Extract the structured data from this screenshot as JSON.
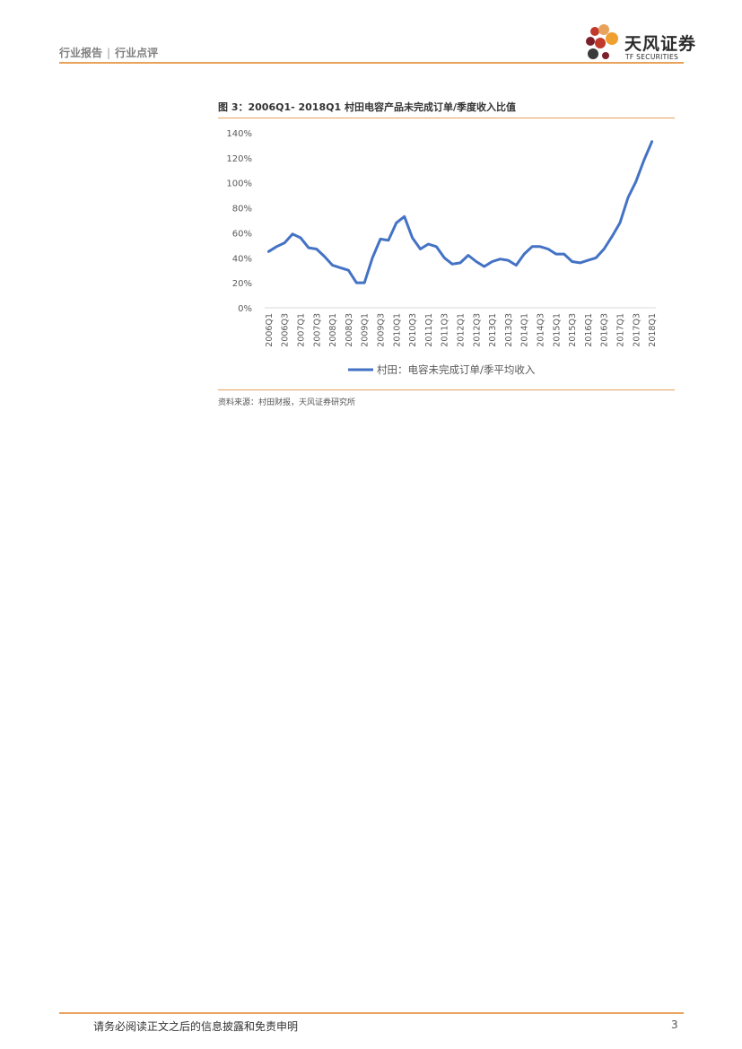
{
  "header": {
    "category": "行业报告",
    "separator": "|",
    "subcategory": "行业点评",
    "logo_name": "天风证券",
    "logo_sub": "TF SECURITIES",
    "accent_color": "#e8a25c"
  },
  "figure": {
    "title": "图 3：2006Q1- 2018Q1 村田电容产品未完成订单/季度收入比值",
    "source": "资料来源：村田财报，天风证券研究所"
  },
  "chart_data": {
    "type": "line",
    "title": "",
    "xlabel": "",
    "ylabel": "",
    "ylim": [
      0,
      140
    ],
    "y_ticks": [
      "0%",
      "20%",
      "40%",
      "60%",
      "80%",
      "100%",
      "120%",
      "140%"
    ],
    "x_tick_labels": [
      "2006Q1",
      "2006Q3",
      "2007Q1",
      "2007Q3",
      "2008Q1",
      "2008Q3",
      "2009Q1",
      "2009Q3",
      "2010Q1",
      "2010Q3",
      "2011Q1",
      "2011Q3",
      "2012Q1",
      "2012Q3",
      "2013Q1",
      "2013Q3",
      "2014Q1",
      "2014Q3",
      "2015Q1",
      "2015Q3",
      "2016Q1",
      "2016Q3",
      "2017Q1",
      "2017Q3",
      "2018Q1"
    ],
    "x": [
      "2006Q1",
      "2006Q2",
      "2006Q3",
      "2006Q4",
      "2007Q1",
      "2007Q2",
      "2007Q3",
      "2007Q4",
      "2008Q1",
      "2008Q2",
      "2008Q3",
      "2008Q4",
      "2009Q1",
      "2009Q2",
      "2009Q3",
      "2009Q4",
      "2010Q1",
      "2010Q2",
      "2010Q3",
      "2010Q4",
      "2011Q1",
      "2011Q2",
      "2011Q3",
      "2011Q4",
      "2012Q1",
      "2012Q2",
      "2012Q3",
      "2012Q4",
      "2013Q1",
      "2013Q2",
      "2013Q3",
      "2013Q4",
      "2014Q1",
      "2014Q2",
      "2014Q3",
      "2014Q4",
      "2015Q1",
      "2015Q2",
      "2015Q3",
      "2015Q4",
      "2016Q1",
      "2016Q2",
      "2016Q3",
      "2016Q4",
      "2017Q1",
      "2017Q2",
      "2017Q3",
      "2017Q4",
      "2018Q1"
    ],
    "series": [
      {
        "name": "村田：电容未完成订单/季平均收入",
        "color": "#4472c4",
        "values": [
          45,
          49,
          52,
          59,
          56,
          48,
          47,
          41,
          34,
          32,
          30,
          20,
          20,
          40,
          55,
          54,
          68,
          73,
          56,
          47,
          51,
          49,
          40,
          35,
          36,
          42,
          37,
          33,
          37,
          39,
          38,
          34,
          43,
          49,
          49,
          47,
          43,
          43,
          37,
          36,
          38,
          40,
          47,
          57,
          68,
          88,
          101,
          118,
          133
        ]
      }
    ],
    "grid": false,
    "legend_position": "bottom"
  },
  "footer": {
    "disclaimer": "请务必阅读正文之后的信息披露和免责申明",
    "page_number": "3"
  }
}
